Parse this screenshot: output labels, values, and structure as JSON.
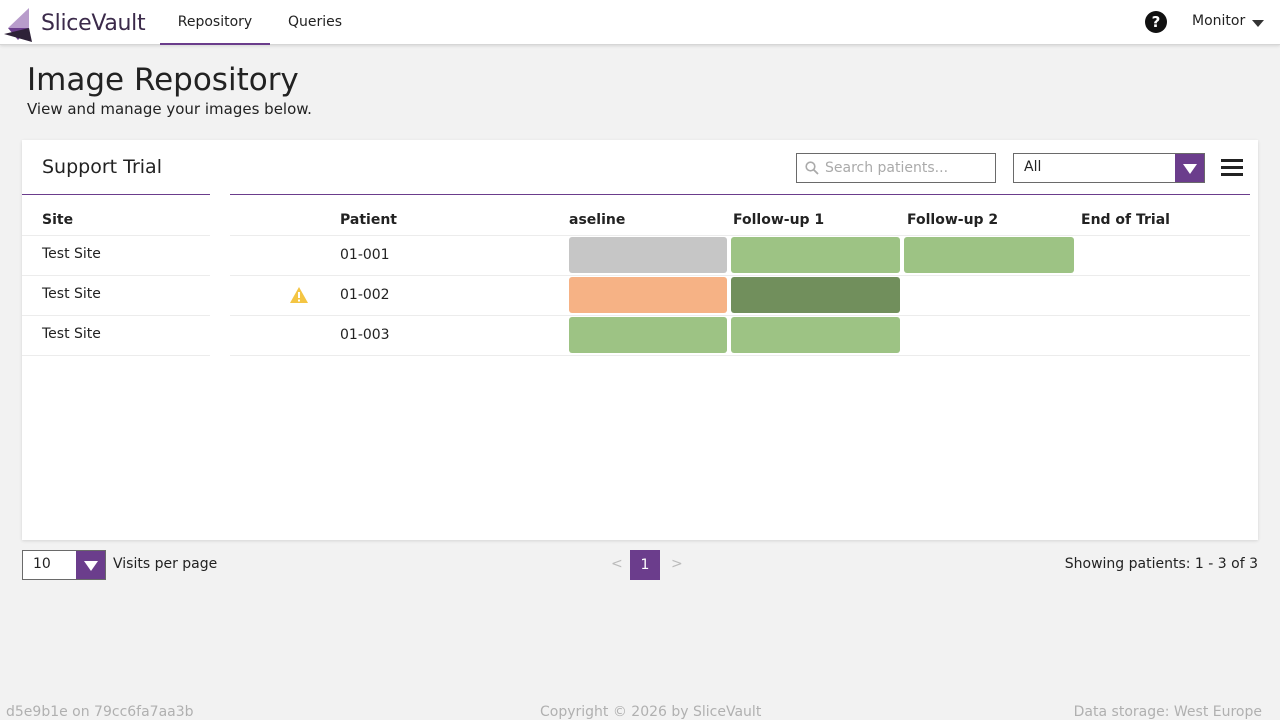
{
  "app": {
    "name": "SliceVault"
  },
  "nav": {
    "tabs": [
      {
        "label": "Repository",
        "active": true
      },
      {
        "label": "Queries",
        "active": false
      }
    ],
    "help_symbol": "?",
    "user_menu_label": "Monitor"
  },
  "header": {
    "title": "Image Repository",
    "subtitle": "View and manage your images below."
  },
  "card": {
    "trial_name": "Support Trial",
    "search_placeholder": "Search patients...",
    "filter_value": "All"
  },
  "table": {
    "headers": {
      "site": "Site",
      "patient": "Patient",
      "visits": [
        "aseline",
        "Follow-up 1",
        "Follow-up 2",
        "End of Trial"
      ]
    },
    "rows": [
      {
        "site": "Test Site",
        "patient": "01-001",
        "warning": false,
        "visit_colors": [
          "#c6c6c6",
          "#9dc384",
          "#9dc384",
          null
        ]
      },
      {
        "site": "Test Site",
        "patient": "01-002",
        "warning": true,
        "visit_colors": [
          "#f6b285",
          "#718f5c",
          null,
          null
        ]
      },
      {
        "site": "Test Site",
        "patient": "01-003",
        "warning": false,
        "visit_colors": [
          "#9dc384",
          "#9dc384",
          null,
          null
        ]
      }
    ]
  },
  "pagination": {
    "per_page_value": "10",
    "per_page_label": "Visits per page",
    "prev": "<",
    "current_page": "1",
    "next": ">",
    "showing": "Showing patients: 1 - 3 of 3"
  },
  "footer": {
    "version": "d5e9b1e on 79cc6fa7aa3b",
    "copyright": "Copyright © 2026 by SliceVault",
    "storage": "Data storage: West Europe"
  },
  "colors": {
    "accent": "#6b3d8c",
    "status_gray": "#c6c6c6",
    "status_green": "#9dc384",
    "status_dark_green": "#718f5c",
    "status_orange": "#f6b285",
    "warning_yellow": "#f4c543"
  },
  "icons": {
    "logo": "slicevault-logo-icon",
    "help": "help-icon",
    "user_caret": "chevron-down-icon",
    "search": "search-icon",
    "dropdown": "dropdown-arrow-icon",
    "menu": "hamburger-menu-icon",
    "warning": "warning-icon"
  }
}
